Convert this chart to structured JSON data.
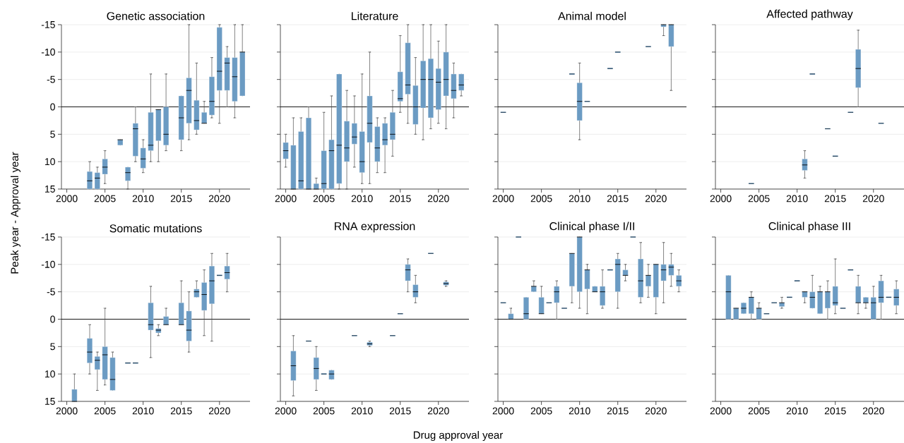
{
  "chart_data": [
    {
      "type": "box",
      "title": "Genetic association",
      "ylabel": "Peak year - Approval year",
      "color": "#6b9bc3",
      "grid": "y",
      "ylim": [
        15,
        -15
      ],
      "yticks": [
        -15,
        -10,
        -5,
        0,
        5,
        10,
        15
      ],
      "ref_lines": [
        {
          "axis": "y",
          "value": 0
        }
      ],
      "categories": [
        "2000",
        null,
        null,
        null,
        null,
        "2005",
        null,
        null,
        null,
        null,
        "2010",
        null,
        null,
        null,
        null,
        "2015",
        null,
        null,
        null,
        null,
        "2020",
        null,
        null,
        null
      ],
      "boxes": [
        null,
        null,
        null,
        {
          "low": 10,
          "q1": 11.8,
          "median": 13.5,
          "q3": 15,
          "high": 15
        },
        {
          "low": 11,
          "q1": 12,
          "median": 13,
          "q3": 15,
          "high": 15
        },
        {
          "low": 8,
          "q1": 9.5,
          "median": 11,
          "q3": 12.3,
          "high": 14
        },
        null,
        {
          "low": 6,
          "q1": 6,
          "median": 6,
          "q3": 7,
          "high": 7
        },
        {
          "low": 11,
          "q1": 11,
          "median": 12,
          "q3": 13.5,
          "high": 15
        },
        {
          "low": 0,
          "q1": 3,
          "median": 4,
          "q3": 9,
          "high": 10
        },
        {
          "low": 6,
          "q1": 7.5,
          "median": 9.5,
          "q3": 11.2,
          "high": 12
        },
        {
          "low": -6,
          "q1": 1,
          "median": 7,
          "q3": 8,
          "high": 10
        },
        {
          "low": 0.5,
          "q1": 0.5,
          "median": 0.5,
          "q3": 6.2,
          "high": 10
        },
        {
          "low": -6,
          "q1": 0,
          "median": 5,
          "q3": 7,
          "high": 8
        },
        null,
        {
          "low": -2,
          "q1": -2,
          "median": 2,
          "q3": 6,
          "high": 8
        },
        {
          "low": -15,
          "q1": -5.3,
          "median": -3,
          "q3": 3,
          "high": 6
        },
        {
          "low": -8,
          "q1": -1.2,
          "median": 2.5,
          "q3": 4.2,
          "high": 5
        },
        {
          "low": -1,
          "q1": 1,
          "median": 3,
          "q3": 3,
          "high": 3
        },
        {
          "low": -9,
          "q1": -5.5,
          "median": -1,
          "q3": 1.5,
          "high": 2
        },
        {
          "low": -15,
          "q1": -14.5,
          "median": -6.5,
          "q3": -3,
          "high": 3
        },
        {
          "low": -11,
          "q1": -9,
          "median": -8,
          "q3": -3,
          "high": 0
        },
        {
          "low": -15,
          "q1": -9,
          "median": -5.5,
          "q3": -1,
          "high": 2
        },
        {
          "low": -15,
          "q1": -10,
          "median": -10,
          "q3": -2,
          "high": -2
        }
      ]
    },
    {
      "type": "box",
      "title": "Literature",
      "color": "#6b9bc3",
      "grid": "y",
      "tick_labels": "x",
      "ylim": [
        15,
        -15
      ],
      "yticks": [
        -15,
        -10,
        -5,
        0,
        5,
        10,
        15
      ],
      "ref_lines": [
        {
          "axis": "y",
          "value": 0
        }
      ],
      "categories": [
        "2000",
        null,
        null,
        null,
        null,
        "2005",
        null,
        null,
        null,
        null,
        "2010",
        null,
        null,
        null,
        null,
        "2015",
        null,
        null,
        null,
        null,
        "2020",
        null,
        null,
        null
      ],
      "boxes": [
        {
          "low": 5,
          "q1": 6.5,
          "median": 8,
          "q3": 9.5,
          "high": 11
        },
        {
          "low": 2,
          "q1": 7,
          "median": 15,
          "q3": 15,
          "high": 15
        },
        {
          "low": 2,
          "q1": 4.5,
          "median": 13.5,
          "q3": 15,
          "high": 15
        },
        {
          "low": 0,
          "q1": 2,
          "median": 15,
          "q3": 15,
          "high": 15
        },
        {
          "low": 13,
          "q1": 14,
          "median": 15,
          "q3": 15,
          "high": 15
        },
        {
          "low": 1,
          "q1": 8,
          "median": 14,
          "q3": 15,
          "high": 15
        },
        {
          "low": -2,
          "q1": 6,
          "median": 8,
          "q3": 15,
          "high": 15
        },
        {
          "low": -6,
          "q1": -6,
          "median": 7,
          "q3": 14,
          "high": 15
        },
        {
          "low": -3,
          "q1": 2.6,
          "median": 7.5,
          "q3": 10,
          "high": 15
        },
        {
          "low": -2,
          "q1": 3,
          "median": 5.5,
          "q3": 6.8,
          "high": 11
        },
        {
          "low": -6,
          "q1": 4.5,
          "median": 10,
          "q3": 12,
          "high": 14
        },
        {
          "low": -10,
          "q1": -2,
          "median": 3,
          "q3": 6.5,
          "high": 14
        },
        {
          "low": 2,
          "q1": 3.6,
          "median": 7.5,
          "q3": 10,
          "high": 12
        },
        {
          "low": 2,
          "q1": 3,
          "median": 6,
          "q3": 7,
          "high": 12
        },
        {
          "low": -3,
          "q1": 1,
          "median": 5,
          "q3": 6,
          "high": 9
        },
        {
          "low": -13,
          "q1": -6.4,
          "median": -1.5,
          "q3": -1,
          "high": 1
        },
        {
          "low": -15,
          "q1": -11.7,
          "median": -4,
          "q3": -2.3,
          "high": 3
        },
        {
          "low": -9,
          "q1": -3.9,
          "median": 0,
          "q3": 3.2,
          "high": 5
        },
        {
          "low": -15,
          "q1": -8.4,
          "median": -5,
          "q3": 0.2,
          "high": 6
        },
        {
          "low": -15,
          "q1": -8.8,
          "median": -5,
          "q3": 2,
          "high": 4
        },
        {
          "low": -12,
          "q1": -7,
          "median": -4.5,
          "q3": 0.5,
          "high": 3
        },
        {
          "low": -15,
          "q1": -10,
          "median": -5,
          "q3": -2,
          "high": 4
        },
        {
          "low": -8,
          "q1": -6,
          "median": -3,
          "q3": -1.5,
          "high": 2
        },
        {
          "low": -6,
          "q1": -6,
          "median": -4,
          "q3": -3,
          "high": -2
        }
      ]
    },
    {
      "type": "box",
      "title": "Animal model",
      "color": "#6b9bc3",
      "grid": "y",
      "tick_labels": "x",
      "ylim": [
        15,
        -15
      ],
      "yticks": [
        -15,
        -10,
        -5,
        0,
        5,
        10,
        15
      ],
      "ref_lines": [
        {
          "axis": "y",
          "value": 0
        }
      ],
      "categories": [
        "2000",
        null,
        null,
        null,
        null,
        "2005",
        null,
        null,
        null,
        null,
        "2010",
        null,
        null,
        null,
        null,
        "2015",
        null,
        null,
        null,
        null,
        "2020",
        null,
        null,
        null
      ],
      "boxes": [
        {
          "low": 1,
          "q1": 1,
          "median": 1,
          "q3": 1,
          "high": 1
        },
        null,
        null,
        null,
        null,
        null,
        null,
        null,
        null,
        {
          "low": -6,
          "q1": -6,
          "median": -6,
          "q3": -6,
          "high": -6
        },
        {
          "low": -8,
          "q1": -4.4,
          "median": -1,
          "q3": 2.5,
          "high": 6
        },
        {
          "low": -1,
          "q1": -1,
          "median": -1,
          "q3": -1,
          "high": -1
        },
        null,
        null,
        {
          "low": -7,
          "q1": -7,
          "median": -7,
          "q3": -7,
          "high": -7
        },
        {
          "low": -10,
          "q1": -10,
          "median": -10,
          "q3": -10,
          "high": -10
        },
        null,
        null,
        null,
        {
          "low": -11,
          "q1": -11,
          "median": -11,
          "q3": -11,
          "high": -11
        },
        null,
        {
          "low": -15,
          "q1": -15,
          "median": -15,
          "q3": -14.6,
          "high": -13
        },
        {
          "low": -15,
          "q1": -15,
          "median": -15,
          "q3": -11,
          "high": -3
        },
        null
      ]
    },
    {
      "type": "box",
      "title": "Affected pathway",
      "color": "#6b9bc3",
      "grid": "y",
      "tick_labels": "x",
      "ylim": [
        15,
        -15
      ],
      "yticks": [
        -15,
        -10,
        -5,
        0,
        5,
        10,
        15
      ],
      "ref_lines": [
        {
          "axis": "y",
          "value": 0
        }
      ],
      "categories": [
        "2000",
        null,
        null,
        null,
        null,
        "2005",
        null,
        null,
        null,
        null,
        "2010",
        null,
        null,
        null,
        null,
        "2015",
        null,
        null,
        null,
        null,
        "2020",
        null,
        null,
        null
      ],
      "boxes": [
        null,
        null,
        null,
        null,
        {
          "low": 14,
          "q1": 14,
          "median": 14,
          "q3": 14,
          "high": 14
        },
        null,
        null,
        null,
        null,
        null,
        null,
        {
          "low": 8,
          "q1": 9.5,
          "median": 10.6,
          "q3": 11.6,
          "high": 13
        },
        {
          "low": -6,
          "q1": -6,
          "median": -6,
          "q3": -6,
          "high": -6
        },
        null,
        {
          "low": 4,
          "q1": 4,
          "median": 4,
          "q3": 4,
          "high": 4
        },
        {
          "low": 9,
          "q1": 9,
          "median": 9,
          "q3": 9,
          "high": 9
        },
        null,
        {
          "low": 1,
          "q1": 1,
          "median": 1,
          "q3": 1,
          "high": 1
        },
        {
          "low": -14,
          "q1": -10.5,
          "median": -7,
          "q3": -3.5,
          "high": 0
        },
        null,
        null,
        {
          "low": 3,
          "q1": 3,
          "median": 3,
          "q3": 3,
          "high": 3
        },
        null,
        null
      ]
    },
    {
      "type": "box",
      "title": "Somatic mutations",
      "color": "#6b9bc3",
      "grid": "y",
      "ylim": [
        15,
        -15
      ],
      "yticks": [
        -15,
        -10,
        -5,
        0,
        5,
        10,
        15
      ],
      "ref_lines": [
        {
          "axis": "y",
          "value": 0
        }
      ],
      "categories": [
        "2000",
        null,
        null,
        null,
        null,
        "2005",
        null,
        null,
        null,
        null,
        "2010",
        null,
        null,
        null,
        null,
        "2015",
        null,
        null,
        null,
        null,
        "2020",
        null,
        null,
        null
      ],
      "boxes": [
        null,
        {
          "low": 10,
          "q1": 12.8,
          "median": 15,
          "q3": 15,
          "high": 15
        },
        null,
        {
          "low": 1,
          "q1": 3.5,
          "median": 6,
          "q3": 8,
          "high": 10
        },
        {
          "low": 6,
          "q1": 6.8,
          "median": 7.5,
          "q3": 9.2,
          "high": 13
        },
        {
          "low": -2,
          "q1": 5,
          "median": 6.5,
          "q3": 11,
          "high": 12
        },
        {
          "low": 6,
          "q1": 7,
          "median": 11,
          "q3": 13,
          "high": 13
        },
        null,
        {
          "low": 8,
          "q1": 8,
          "median": 8,
          "q3": 8,
          "high": 8
        },
        {
          "low": 8,
          "q1": 8,
          "median": 8,
          "q3": 8,
          "high": 8
        },
        null,
        {
          "low": -6,
          "q1": -3,
          "median": 1,
          "q3": 2,
          "high": 7
        },
        {
          "low": 1,
          "q1": 1.7,
          "median": 2,
          "q3": 2.5,
          "high": 3
        },
        {
          "low": -2,
          "q1": -0.5,
          "median": 1,
          "q3": 1,
          "high": 1
        },
        null,
        {
          "low": -7,
          "q1": -3,
          "median": 1,
          "q3": 1,
          "high": 1
        },
        {
          "low": -5,
          "q1": -1.5,
          "median": 2,
          "q3": 4,
          "high": 6
        },
        {
          "low": -7,
          "q1": -5.5,
          "median": -5,
          "q3": -4,
          "high": -4
        },
        {
          "low": -9,
          "q1": -6.7,
          "median": -4.5,
          "q3": -1.6,
          "high": 3
        },
        {
          "low": -12,
          "q1": -9.7,
          "median": -7,
          "q3": -2.8,
          "high": 4
        },
        {
          "low": -8,
          "q1": -8,
          "median": -8,
          "q3": -8,
          "high": -8
        },
        {
          "low": -12,
          "q1": -9.7,
          "median": -8.5,
          "q3": -7.3,
          "high": -5
        },
        null,
        null
      ]
    },
    {
      "type": "box",
      "title": "RNA expression",
      "xlabel": "Drug approval year",
      "color": "#6b9bc3",
      "grid": "y",
      "tick_labels": "x",
      "ylim": [
        15,
        -15
      ],
      "yticks": [
        -15,
        -10,
        -5,
        0,
        5,
        10,
        15
      ],
      "ref_lines": [
        {
          "axis": "y",
          "value": 0
        }
      ],
      "categories": [
        "2000",
        null,
        null,
        null,
        null,
        "2005",
        null,
        null,
        null,
        null,
        "2010",
        null,
        null,
        null,
        null,
        "2015",
        null,
        null,
        null,
        null,
        "2020",
        null,
        null,
        null
      ],
      "boxes": [
        null,
        {
          "low": 3,
          "q1": 5.8,
          "median": 8.5,
          "q3": 11.2,
          "high": 14
        },
        null,
        {
          "low": 4,
          "q1": 4,
          "median": 4,
          "q3": 4,
          "high": 4
        },
        {
          "low": 5,
          "q1": 7,
          "median": 9,
          "q3": 11,
          "high": 13
        },
        {
          "low": 10,
          "q1": 10,
          "median": 10,
          "q3": 10,
          "high": 10
        },
        {
          "low": 9.3,
          "q1": 9.3,
          "median": 10,
          "q3": 11,
          "high": 11
        },
        null,
        null,
        {
          "low": 3,
          "q1": 3,
          "median": 3,
          "q3": 3,
          "high": 3
        },
        null,
        {
          "low": 4,
          "q1": 4.2,
          "median": 4.5,
          "q3": 4.8,
          "high": 5
        },
        null,
        null,
        {
          "low": 3,
          "q1": 3,
          "median": 3,
          "q3": 3,
          "high": 3
        },
        {
          "low": -1,
          "q1": -1,
          "median": -1,
          "q3": -1,
          "high": -1
        },
        {
          "low": -11,
          "q1": -10,
          "median": -9,
          "q3": -7,
          "high": -5
        },
        {
          "low": -8,
          "q1": -6.3,
          "median": -5,
          "q3": -4,
          "high": -3
        },
        null,
        {
          "low": -12,
          "q1": -12,
          "median": -12,
          "q3": -12,
          "high": -12
        },
        null,
        {
          "low": -7,
          "q1": -6.8,
          "median": -6.5,
          "q3": -6.2,
          "high": -6
        },
        null,
        null
      ]
    },
    {
      "type": "box",
      "title": "Clinical phase I/II",
      "color": "#6b9bc3",
      "grid": "y",
      "tick_labels": "x",
      "ylim": [
        15,
        -15
      ],
      "yticks": [
        -15,
        -10,
        -5,
        0,
        5,
        10,
        15
      ],
      "ref_lines": [
        {
          "axis": "y",
          "value": 0
        }
      ],
      "categories": [
        "2000",
        null,
        null,
        null,
        null,
        "2005",
        null,
        null,
        null,
        null,
        "2010",
        null,
        null,
        null,
        null,
        "2015",
        null,
        null,
        null,
        null,
        "2020",
        null,
        null,
        null
      ],
      "boxes": [
        {
          "low": -3,
          "q1": -3,
          "median": -3,
          "q3": -3,
          "high": -3
        },
        {
          "low": -2,
          "q1": -1,
          "median": 0,
          "q3": 0,
          "high": 0
        },
        {
          "low": -15,
          "q1": -15,
          "median": -15,
          "q3": -15,
          "high": -15
        },
        {
          "low": -4,
          "q1": -4,
          "median": -1,
          "q3": 0,
          "high": 0
        },
        {
          "low": -7,
          "q1": -6,
          "median": -6,
          "q3": -5,
          "high": -5
        },
        {
          "low": -6,
          "q1": -4,
          "median": -1,
          "q3": -1,
          "high": -1
        },
        {
          "low": -3,
          "q1": -3,
          "median": -3,
          "q3": -3,
          "high": -3
        },
        {
          "low": -7,
          "q1": -6,
          "median": -5,
          "q3": -3,
          "high": 0
        },
        {
          "low": -2,
          "q1": -2,
          "median": -2,
          "q3": -2,
          "high": -2
        },
        {
          "low": -12,
          "q1": -12,
          "median": -12,
          "q3": -6,
          "high": -3
        },
        {
          "low": -15,
          "q1": -15,
          "median": -15,
          "q3": -5,
          "high": -2
        },
        {
          "low": -10,
          "q1": -9,
          "median": -9,
          "q3": -5.5,
          "high": -1
        },
        {
          "low": -6,
          "q1": -6,
          "median": -5,
          "q3": -5,
          "high": -5
        },
        {
          "low": -9,
          "q1": -6,
          "median": -5,
          "q3": -2.5,
          "high": -2
        },
        {
          "low": -9,
          "q1": -9,
          "median": -9,
          "q3": -9,
          "high": -9
        },
        {
          "low": -12,
          "q1": -11,
          "median": -10,
          "q3": -5,
          "high": -2
        },
        {
          "low": -10,
          "q1": -9,
          "median": -8,
          "q3": -8,
          "high": -7
        },
        {
          "low": -15,
          "q1": -15,
          "median": -15,
          "q3": -15,
          "high": -15
        },
        {
          "low": -14,
          "q1": -11,
          "median": -7,
          "q3": -4,
          "high": -3
        },
        {
          "low": -10,
          "q1": -8,
          "median": -8,
          "q3": -6,
          "high": -4
        },
        {
          "low": -10,
          "q1": -10,
          "median": -10,
          "q3": -4,
          "high": -1
        },
        {
          "low": -14,
          "q1": -10,
          "median": -9,
          "q3": -7,
          "high": -3
        },
        {
          "low": -12,
          "q1": -10,
          "median": -9.5,
          "q3": -8,
          "high": -6
        },
        {
          "low": -9,
          "q1": -8,
          "median": -7,
          "q3": -6,
          "high": -5
        }
      ]
    },
    {
      "type": "box",
      "title": "Clinical phase III",
      "color": "#6b9bc3",
      "grid": "y",
      "tick_labels": "x",
      "ylim": [
        15,
        -15
      ],
      "yticks": [
        -15,
        -10,
        -5,
        0,
        5,
        10,
        15
      ],
      "ref_lines": [
        {
          "axis": "y",
          "value": 0
        }
      ],
      "categories": [
        "2000",
        null,
        null,
        null,
        null,
        "2005",
        null,
        null,
        null,
        null,
        "2010",
        null,
        null,
        null,
        null,
        "2015",
        null,
        null,
        null,
        null,
        "2020",
        null,
        null,
        null
      ],
      "boxes": [
        null,
        {
          "low": -8,
          "q1": -8,
          "median": -5,
          "q3": 0,
          "high": 0
        },
        {
          "low": -2,
          "q1": -2,
          "median": -2,
          "q3": 0,
          "high": 0
        },
        {
          "low": -3,
          "q1": -3,
          "median": -2,
          "q3": -1,
          "high": -1
        },
        {
          "low": -5,
          "q1": -4,
          "median": -4,
          "q3": -1,
          "high": 0
        },
        {
          "low": -3,
          "q1": -2,
          "median": -2,
          "q3": 0,
          "high": 0
        },
        {
          "low": -1,
          "q1": -1,
          "median": -1,
          "q3": -1,
          "high": -1
        },
        {
          "low": -3,
          "q1": -3,
          "median": -3,
          "q3": -3,
          "high": -3
        },
        {
          "low": -4,
          "q1": -3,
          "median": -3,
          "q3": -2.3,
          "high": -2
        },
        {
          "low": -4,
          "q1": -4,
          "median": -4,
          "q3": -4,
          "high": -4
        },
        {
          "low": -7,
          "q1": -7,
          "median": -7,
          "q3": -7,
          "high": -7
        },
        {
          "low": -5,
          "q1": -5,
          "median": -5,
          "q3": -4,
          "high": -3
        },
        {
          "low": -8,
          "q1": -5,
          "median": -4,
          "q3": -2,
          "high": -2
        },
        {
          "low": -6,
          "q1": -5,
          "median": -5,
          "q3": -1,
          "high": -1
        },
        {
          "low": -7,
          "q1": -5,
          "median": -5,
          "q3": -2,
          "high": 0
        },
        {
          "low": -11,
          "q1": -6,
          "median": -3,
          "q3": -2.5,
          "high": -1
        },
        {
          "low": -2,
          "q1": -2,
          "median": -2,
          "q3": -2,
          "high": -2
        },
        {
          "low": -9,
          "q1": -9,
          "median": -9,
          "q3": -9,
          "high": -9
        },
        {
          "low": -8,
          "q1": -6,
          "median": -3,
          "q3": -3,
          "high": -1
        },
        {
          "low": -4,
          "q1": -4,
          "median": -3,
          "q3": -3,
          "high": -2
        },
        {
          "low": -6,
          "q1": -4,
          "median": -3,
          "q3": 0,
          "high": 0
        },
        {
          "low": -8,
          "q1": -7,
          "median": -4,
          "q3": -3,
          "high": 0
        },
        {
          "low": -4,
          "q1": -4,
          "median": -4,
          "q3": -4,
          "high": -4
        },
        {
          "low": -7,
          "q1": -5.5,
          "median": -4,
          "q3": -2.5,
          "high": -1
        }
      ]
    }
  ]
}
